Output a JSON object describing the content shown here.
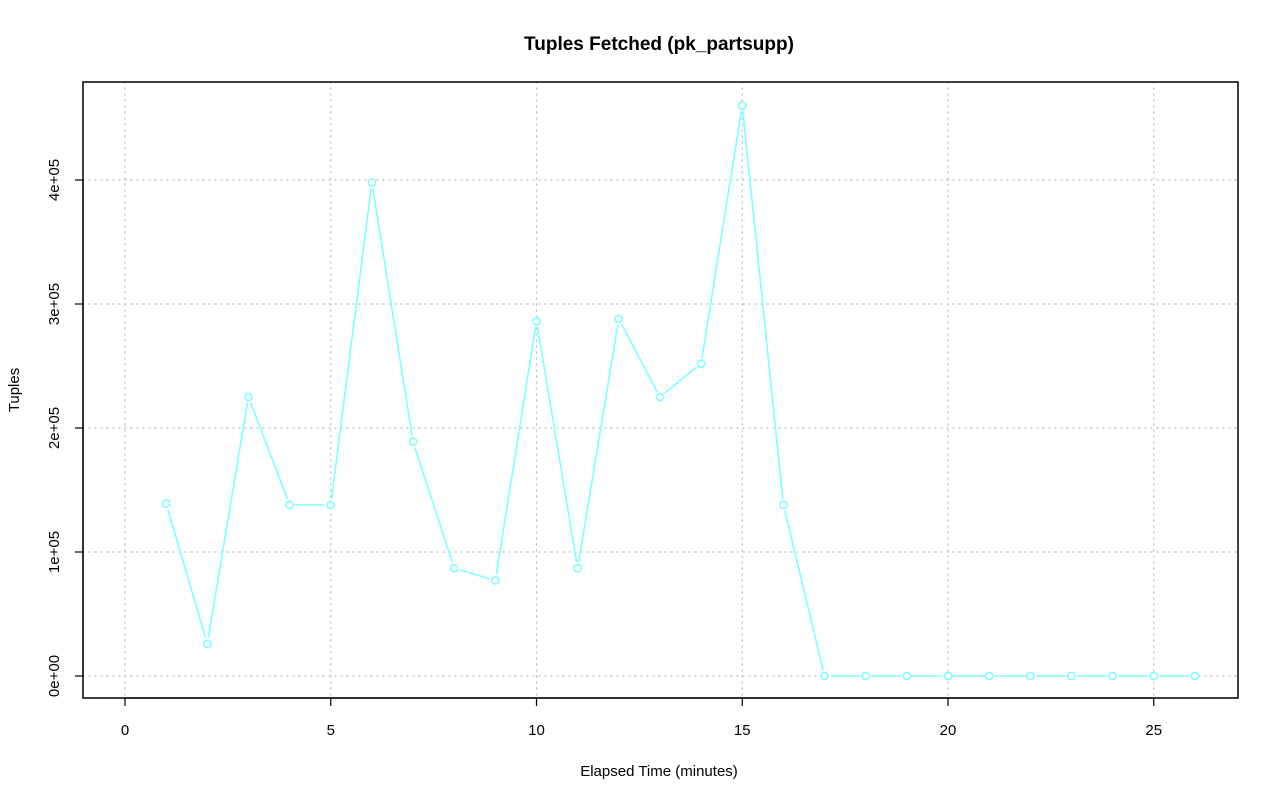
{
  "chart_data": {
    "type": "line",
    "title": "Tuples Fetched (pk_partsupp)",
    "xlabel": "Elapsed Time (minutes)",
    "ylabel": "Tuples",
    "xlim": [
      0,
      26
    ],
    "ylim": [
      0,
      460000
    ],
    "x_ticks": [
      0,
      5,
      10,
      15,
      20,
      25
    ],
    "x_tick_labels": [
      "0",
      "5",
      "10",
      "15",
      "20",
      "25"
    ],
    "y_ticks": [
      0,
      100000,
      200000,
      300000,
      400000
    ],
    "y_tick_labels": [
      "0e+00",
      "1e+05",
      "2e+05",
      "3e+05",
      "4e+05"
    ],
    "grid": true,
    "marker": "open-circle",
    "series": [
      {
        "color": "#7fffff",
        "x": [
          1,
          2,
          3,
          4,
          5,
          6,
          7,
          8,
          9,
          10,
          11,
          12,
          13,
          14,
          15,
          16,
          17,
          18,
          19,
          20,
          21,
          22,
          23,
          24,
          25,
          26
        ],
        "values": [
          139000,
          26000,
          225000,
          138000,
          138000,
          398000,
          189000,
          87000,
          77000,
          286000,
          87000,
          288000,
          225000,
          252000,
          460000,
          138000,
          0,
          0,
          0,
          0,
          0,
          0,
          0,
          0,
          0,
          0
        ]
      }
    ]
  }
}
